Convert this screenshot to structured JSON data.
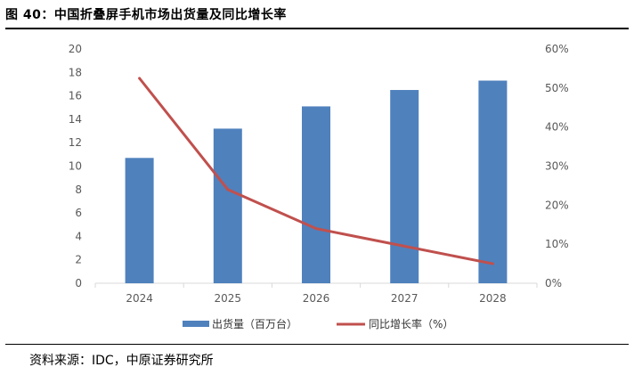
{
  "header": {
    "title": "图 40：中国折叠屏手机市场出货量及同比增长率"
  },
  "footer": {
    "source": "资料来源：IDC，中原证券研究所"
  },
  "colors": {
    "bar": "#4f81bd",
    "line": "#c0504d"
  },
  "chart_data": {
    "type": "bar+line",
    "categories": [
      "2024",
      "2025",
      "2026",
      "2027",
      "2028"
    ],
    "series": [
      {
        "name": "出货量（百万台）",
        "type": "bar",
        "axis": "left",
        "values": [
          10.7,
          13.2,
          15.1,
          16.5,
          17.3
        ]
      },
      {
        "name": "同比增长率（%）",
        "type": "line",
        "axis": "right",
        "values": [
          0.525,
          0.24,
          0.14,
          0.095,
          0.05
        ]
      }
    ],
    "y_left": {
      "min": 0,
      "max": 20,
      "step": 2,
      "ticks": [
        "0",
        "2",
        "4",
        "6",
        "8",
        "10",
        "12",
        "14",
        "16",
        "18",
        "20"
      ]
    },
    "y_right": {
      "min": 0,
      "max": 0.6,
      "step": 0.1,
      "ticks": [
        "0%",
        "10%",
        "20%",
        "30%",
        "40%",
        "50%",
        "60%"
      ]
    },
    "legend_position": "bottom",
    "grid": false
  }
}
